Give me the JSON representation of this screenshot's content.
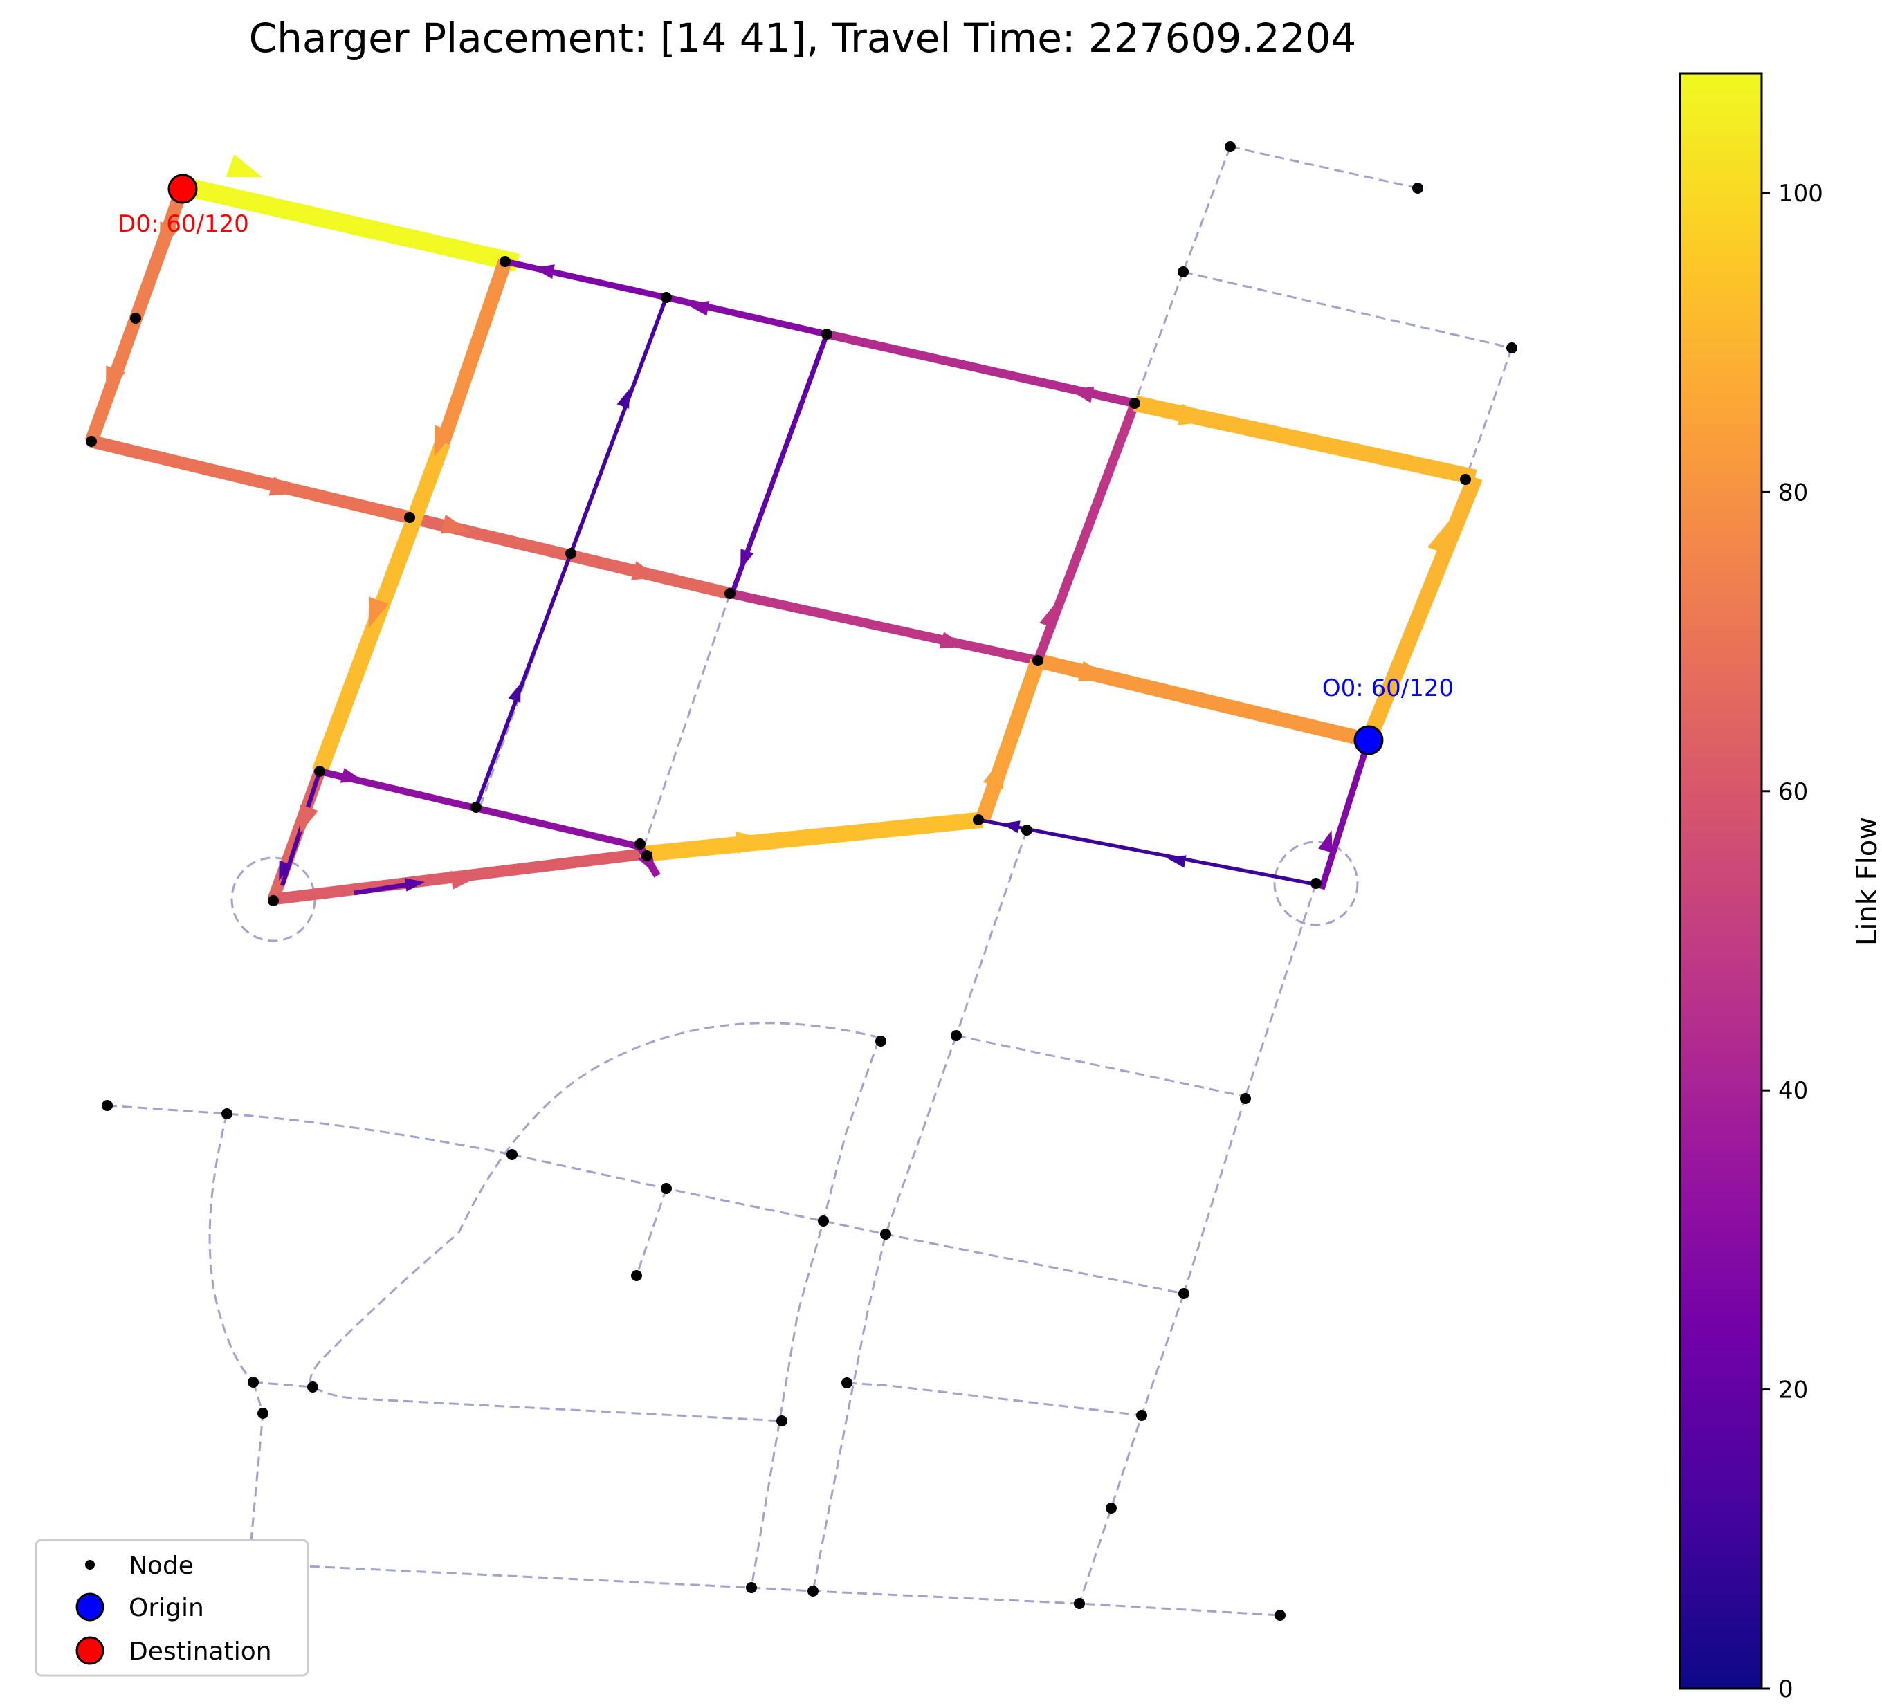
{
  "title": "Charger Placement: [14 41], Travel Time: 227609.2204",
  "origin_label": "O0: 60/120",
  "destination_label": "D0: 60/120",
  "colorbar": {
    "label": "Link Flow",
    "min": 0,
    "max": 108,
    "ticks": [
      "0",
      "20",
      "40",
      "60",
      "80",
      "100"
    ],
    "tick_values": [
      0,
      20,
      40,
      60,
      80,
      100
    ],
    "colormap": [
      "#0d0887",
      "#46039f",
      "#7201a8",
      "#9c179e",
      "#bd3786",
      "#d8576b",
      "#ed7953",
      "#fb9f3a",
      "#fdca26",
      "#f0f921"
    ]
  },
  "legend": [
    {
      "label": "Node",
      "marker": "dot",
      "color": "#000000"
    },
    {
      "label": "Origin",
      "marker": "circle",
      "color": "#0000ff"
    },
    {
      "label": "Destination",
      "marker": "circle",
      "color": "#ff0000"
    }
  ],
  "chargers": [
    14,
    41
  ],
  "colors": {
    "background_link": "#8888bb",
    "node": "#000000",
    "origin": "#0000ff",
    "destination": "#ff0000"
  }
}
